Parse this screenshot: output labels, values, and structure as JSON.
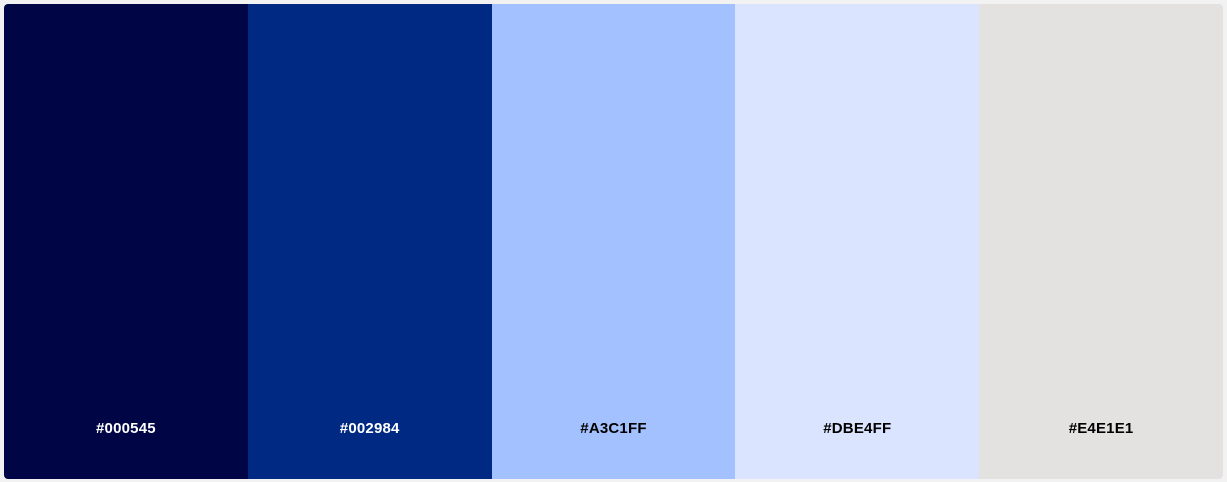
{
  "palette": {
    "swatches": [
      {
        "label": "#000545",
        "color": "#000545",
        "text_color": "#ffffff"
      },
      {
        "label": "#002984",
        "color": "#002984",
        "text_color": "#ffffff"
      },
      {
        "label": "#A3C1FF",
        "color": "#A3C1FF",
        "text_color": "#000000"
      },
      {
        "label": "#DBE4FF",
        "color": "#DBE4FF",
        "text_color": "#000000"
      },
      {
        "label": "#E4E1E1",
        "color": "#E4E1E1",
        "text_color": "#000000"
      }
    ]
  }
}
